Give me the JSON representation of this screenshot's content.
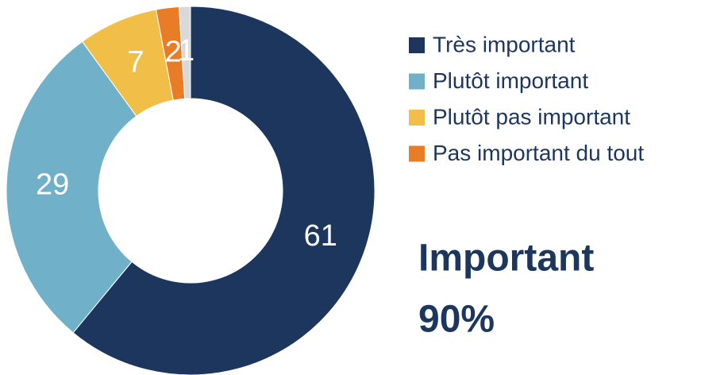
{
  "chart_data": {
    "type": "pie",
    "categories": [
      "Très important",
      "Plutôt important",
      "Plutôt pas important",
      "Pas important du tout",
      null
    ],
    "values": [
      61,
      29,
      7,
      2,
      1
    ],
    "colors": [
      "#1c365e",
      "#70b1c9",
      "#f1bf48",
      "#e97c26",
      "#d9d9d9"
    ],
    "donut": true,
    "legend": "right",
    "annotations": [
      "Important",
      "90%"
    ]
  }
}
